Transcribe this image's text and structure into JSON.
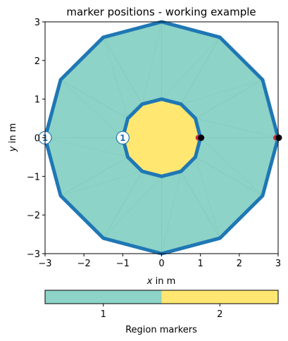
{
  "chart_data": {
    "type": "mesh",
    "title": "marker positions - working example",
    "xlabel_var": "x",
    "xlabel_rest": " in m",
    "ylabel_var": "y",
    "ylabel_rest": " in m",
    "xlim": [
      -3,
      3
    ],
    "ylim": [
      -3,
      3
    ],
    "xticks": [
      -3,
      -2,
      -1,
      0,
      1,
      2,
      3
    ],
    "yticks": [
      -3,
      -2,
      -1,
      0,
      1,
      2,
      3
    ],
    "xtick_labels": [
      "−3",
      "−2",
      "−1",
      "0",
      "1",
      "2",
      "3"
    ],
    "ytick_labels": [
      "−3",
      "−2",
      "−1",
      "0",
      "1",
      "2",
      "3"
    ],
    "outer_boundary": {
      "shape": "regular-dodecagon",
      "radius": 3,
      "vertices": [
        [
          0,
          3
        ],
        [
          1.5,
          2.6
        ],
        [
          2.6,
          1.5
        ],
        [
          3,
          0
        ],
        [
          2.6,
          -1.5
        ],
        [
          1.5,
          -2.6
        ],
        [
          0,
          -3
        ],
        [
          -1.5,
          -2.6
        ],
        [
          -2.6,
          -1.5
        ],
        [
          -3,
          0
        ],
        [
          -2.6,
          1.5
        ],
        [
          -1.5,
          2.6
        ]
      ]
    },
    "inner_boundary": {
      "shape": "regular-dodecagon",
      "radius": 1,
      "vertices": [
        [
          0,
          1
        ],
        [
          0.5,
          0.87
        ],
        [
          0.87,
          0.5
        ],
        [
          1,
          0
        ],
        [
          0.87,
          -0.5
        ],
        [
          0.5,
          -0.87
        ],
        [
          0,
          -1
        ],
        [
          -0.5,
          -0.87
        ],
        [
          -0.87,
          -0.5
        ],
        [
          -1,
          0
        ],
        [
          -0.87,
          0.5
        ],
        [
          -0.5,
          0.87
        ]
      ]
    },
    "regions": [
      {
        "marker": 1,
        "label": "1",
        "color": "#8dd3c7",
        "area": "outer ring"
      },
      {
        "marker": 2,
        "label": "2",
        "color": "#ffe771",
        "area": "inner disk"
      }
    ],
    "boundary_markers": [
      {
        "x": -3,
        "y": 0,
        "label": "1"
      },
      {
        "x": -1,
        "y": 0,
        "label": "1"
      }
    ],
    "nodes": [
      {
        "x": 1,
        "y": 0
      },
      {
        "x": 3,
        "y": 0
      }
    ],
    "colorbar": {
      "label": "Region markers",
      "ticks": [
        "1",
        "2"
      ],
      "colors": [
        "#8dd3c7",
        "#ffe771"
      ]
    },
    "colors": {
      "boundary": "#1f77b4",
      "marker_fill": "#ffffff",
      "marker_text": "#1f77b4",
      "node": "#000000",
      "node_accent": "#c0304a"
    }
  }
}
